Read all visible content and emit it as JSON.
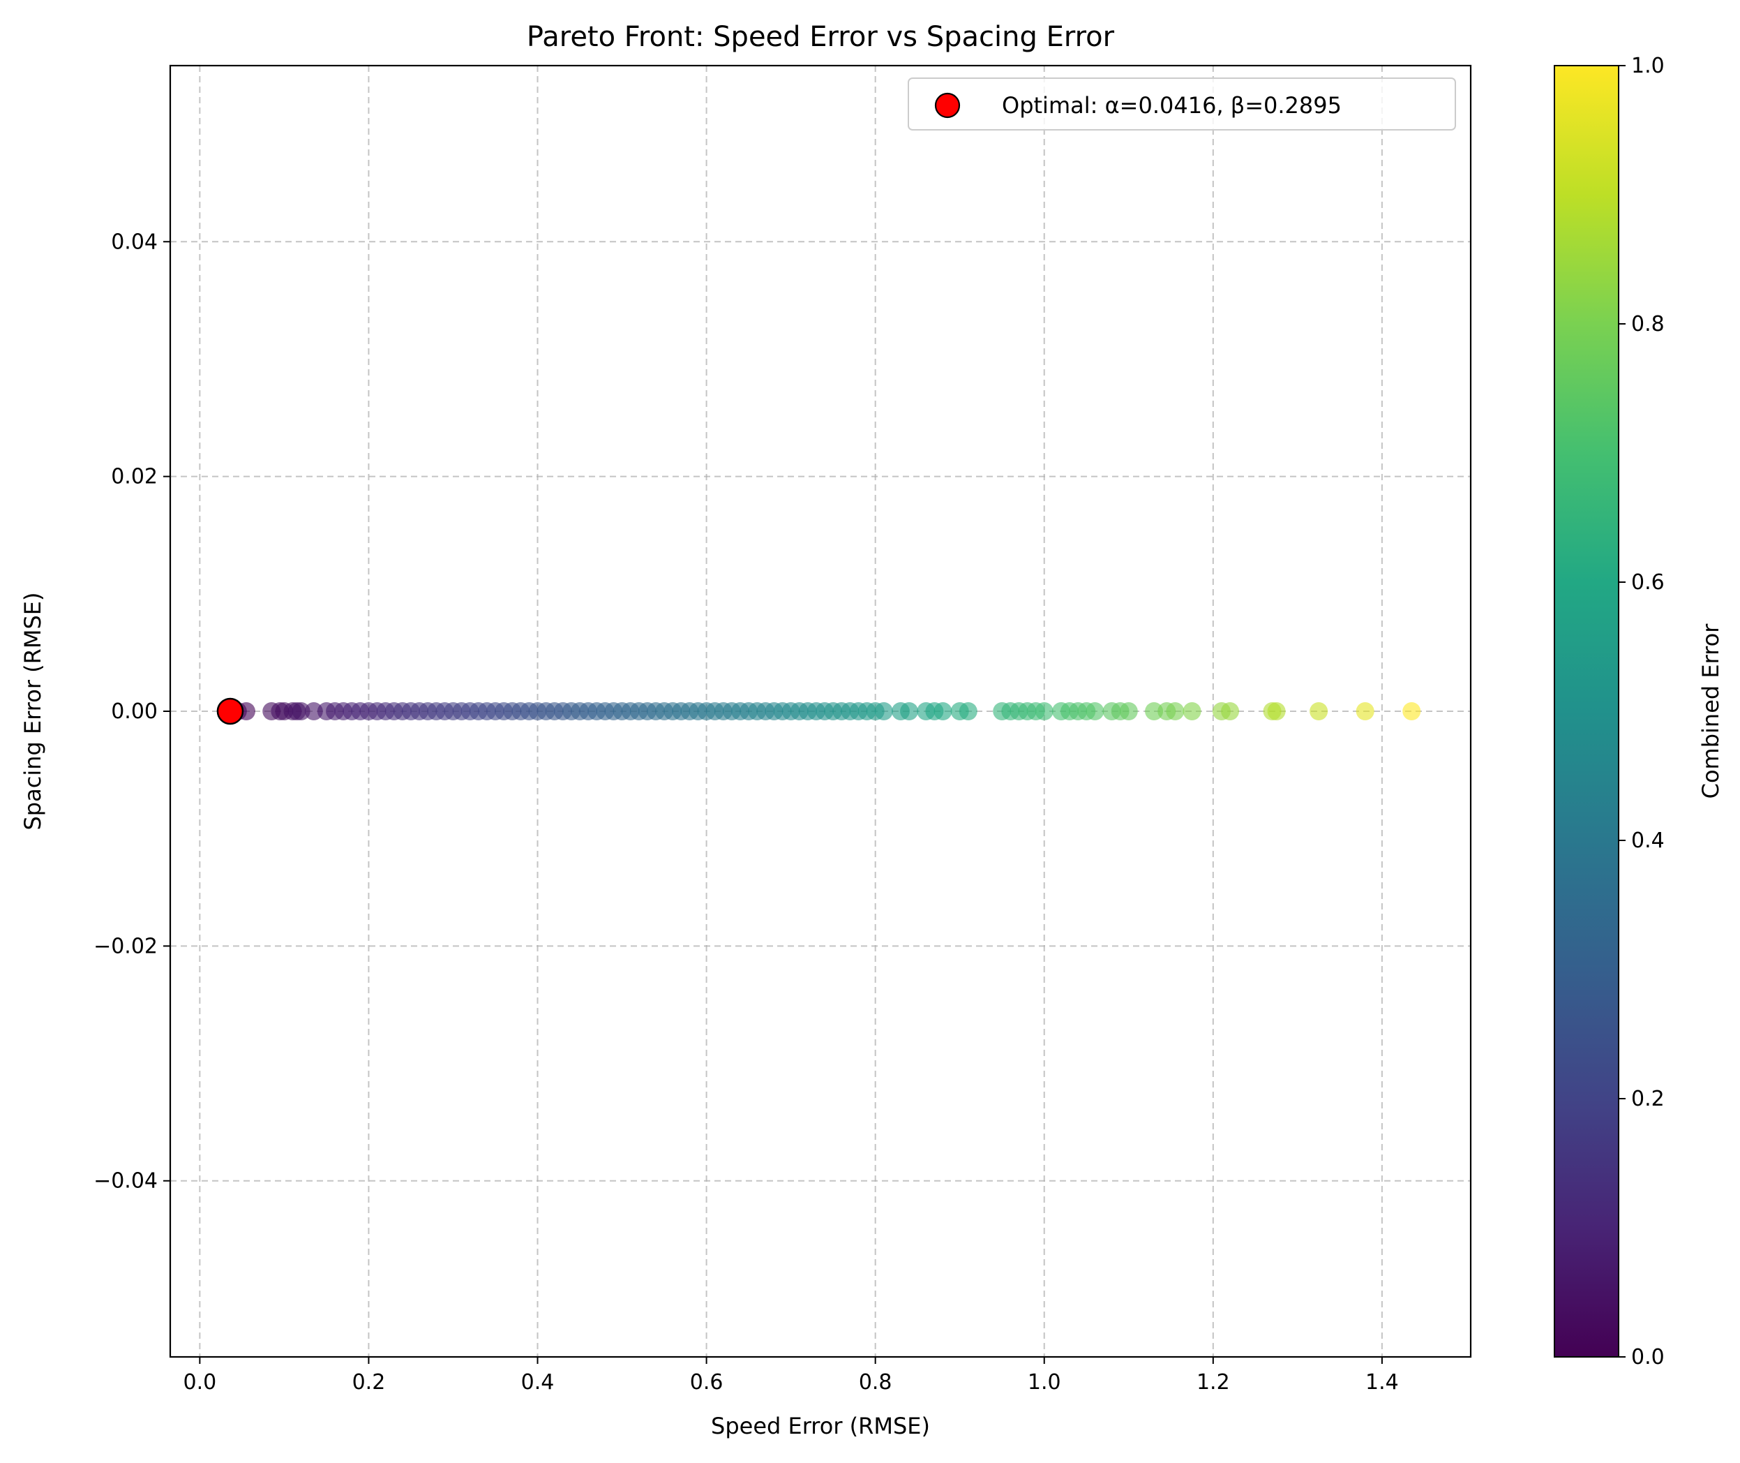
{
  "chart_data": {
    "type": "scatter",
    "title": "Pareto Front: Speed Error vs Spacing Error",
    "xlabel": "Speed Error (RMSE)",
    "ylabel": "Spacing Error (RMSE)",
    "xlim": [
      -0.035,
      1.505
    ],
    "ylim": [
      -0.055,
      0.055
    ],
    "x_ticks": [
      0.0,
      0.2,
      0.4,
      0.6,
      0.8,
      1.0,
      1.2,
      1.4
    ],
    "x_tick_labels": [
      "0.0",
      "0.2",
      "0.4",
      "0.6",
      "0.8",
      "1.0",
      "1.2",
      "1.4"
    ],
    "y_ticks": [
      -0.04,
      -0.02,
      0.0,
      0.02,
      0.04
    ],
    "y_tick_labels": [
      "−0.04",
      "−0.02",
      "0.00",
      "0.02",
      "0.04"
    ],
    "grid": true,
    "legend_position": "top-right",
    "colormap": "viridis",
    "colorbar": {
      "label": "Combined Error",
      "range": [
        0.0,
        1.0
      ],
      "ticks": [
        0.0,
        0.2,
        0.4,
        0.6,
        0.8,
        1.0
      ],
      "tick_labels": [
        "0.0",
        "0.2",
        "0.4",
        "0.6",
        "0.8",
        "1.0"
      ]
    },
    "series": [
      {
        "x": [
          0.045,
          0.055,
          0.085,
          0.095,
          0.1,
          0.11,
          0.115,
          0.12,
          0.135,
          0.15,
          0.16,
          0.17,
          0.18,
          0.19,
          0.2,
          0.21,
          0.22,
          0.23,
          0.24,
          0.25,
          0.26,
          0.27,
          0.28,
          0.29,
          0.3,
          0.31,
          0.32,
          0.33,
          0.34,
          0.35,
          0.36,
          0.37,
          0.38,
          0.39,
          0.4,
          0.41,
          0.42,
          0.43,
          0.44,
          0.45,
          0.46,
          0.47,
          0.48,
          0.49,
          0.5,
          0.51,
          0.52,
          0.53,
          0.54,
          0.55,
          0.56,
          0.57,
          0.58,
          0.59,
          0.6,
          0.61,
          0.62,
          0.63,
          0.64,
          0.65,
          0.66,
          0.67,
          0.68,
          0.69,
          0.7,
          0.71,
          0.72,
          0.73,
          0.74,
          0.75,
          0.76,
          0.77,
          0.78,
          0.79,
          0.8,
          0.81,
          0.83,
          0.84,
          0.86,
          0.87,
          0.88,
          0.9,
          0.91,
          0.95,
          0.96,
          0.97,
          0.98,
          0.99,
          1.0,
          1.02,
          1.03,
          1.04,
          1.05,
          1.06,
          1.08,
          1.09,
          1.1,
          1.13,
          1.145,
          1.155,
          1.175,
          1.21,
          1.22,
          1.27,
          1.275,
          1.325,
          1.38,
          1.435
        ],
        "y": [
          0,
          0,
          0,
          0,
          0,
          0,
          0,
          0,
          0,
          0,
          0,
          0,
          0,
          0,
          0,
          0,
          0,
          0,
          0,
          0,
          0,
          0,
          0,
          0,
          0,
          0,
          0,
          0,
          0,
          0,
          0,
          0,
          0,
          0,
          0,
          0,
          0,
          0,
          0,
          0,
          0,
          0,
          0,
          0,
          0,
          0,
          0,
          0,
          0,
          0,
          0,
          0,
          0,
          0,
          0,
          0,
          0,
          0,
          0,
          0,
          0,
          0,
          0,
          0,
          0,
          0,
          0,
          0,
          0,
          0,
          0,
          0,
          0,
          0,
          0,
          0,
          0,
          0,
          0,
          0,
          0,
          0,
          0,
          0,
          0,
          0,
          0,
          0,
          0,
          0,
          0,
          0,
          0,
          0,
          0,
          0,
          0,
          0,
          0,
          0,
          0,
          0,
          0,
          0,
          0,
          0,
          0,
          0
        ]
      },
      {
        "name": "Optimal: α=0.0416, β=0.2895",
        "x": [
          0.036
        ],
        "y": [
          0.0
        ],
        "color": "#ff0000"
      }
    ]
  }
}
